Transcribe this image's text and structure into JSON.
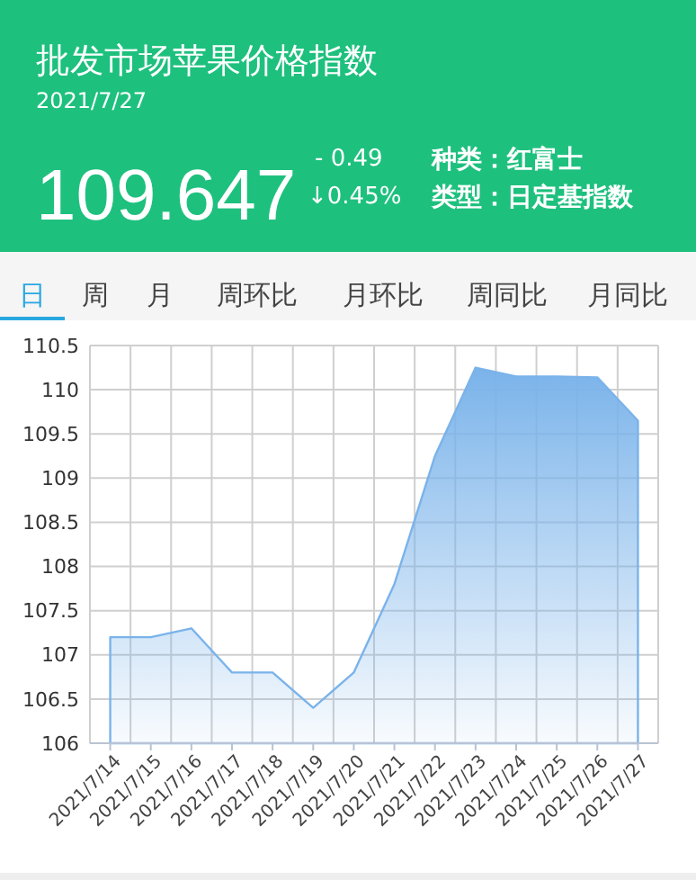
{
  "chart_data": {
    "type": "area",
    "title": "批发市场苹果价格指数",
    "subtitle": "2021/7/27",
    "categories": [
      "2021/7/14",
      "2021/7/15",
      "2021/7/16",
      "2021/7/17",
      "2021/7/18",
      "2021/7/19",
      "2021/7/20",
      "2021/7/21",
      "2021/7/22",
      "2021/7/23",
      "2021/7/24",
      "2021/7/25",
      "2021/7/26",
      "2021/7/27"
    ],
    "series": [
      {
        "color": "#7ab3ea",
        "values": [
          107.2,
          107.2,
          107.3,
          106.8,
          106.8,
          106.4,
          106.8,
          107.8,
          109.25,
          110.25,
          110.15,
          110.15,
          110.14,
          109.65
        ]
      }
    ],
    "ylim": [
      106,
      110.5
    ],
    "yticks": [
      106,
      106.5,
      107,
      107.5,
      108,
      108.5,
      109,
      109.5,
      110,
      110.5
    ],
    "grid": true,
    "annotations": [
      "109.647",
      "- 0.49",
      "↓0.45%",
      "种类：红富士",
      "类型：日定基指数",
      "日",
      "周",
      "月",
      "周环比",
      "月环比",
      "周同比",
      "月同比"
    ]
  }
}
